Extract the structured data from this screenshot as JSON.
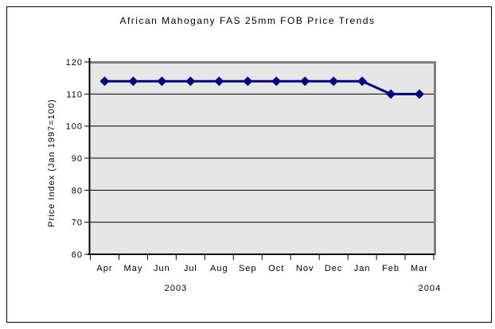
{
  "chart_data": {
    "type": "line",
    "title": "African Mahogany FAS 25mm FOB Price Trends",
    "ylabel": "Price Index (Jan 1997=100)",
    "categories": [
      "Apr",
      "May",
      "Jun",
      "Jul",
      "Aug",
      "Sep",
      "Oct",
      "Nov",
      "Dec",
      "Jan",
      "Feb",
      "Mar"
    ],
    "year_labels": [
      "2003",
      "2004"
    ],
    "values": [
      114,
      114,
      114,
      114,
      114,
      114,
      114,
      114,
      114,
      114,
      110,
      110
    ],
    "ylim": [
      60,
      120
    ],
    "ytick_step": 10,
    "yticks": [
      60,
      70,
      80,
      90,
      100,
      110,
      120
    ],
    "grid": "horizontal",
    "legend": "none",
    "marker": "diamond",
    "colors": {
      "line": "#000080",
      "plot_bg": "#E6E6E6",
      "plot_border": "#808080",
      "grid": "#000000",
      "axis": "#000000",
      "text": "#000000",
      "frame": "#000000",
      "page_bg": "#FFFFFF"
    }
  }
}
